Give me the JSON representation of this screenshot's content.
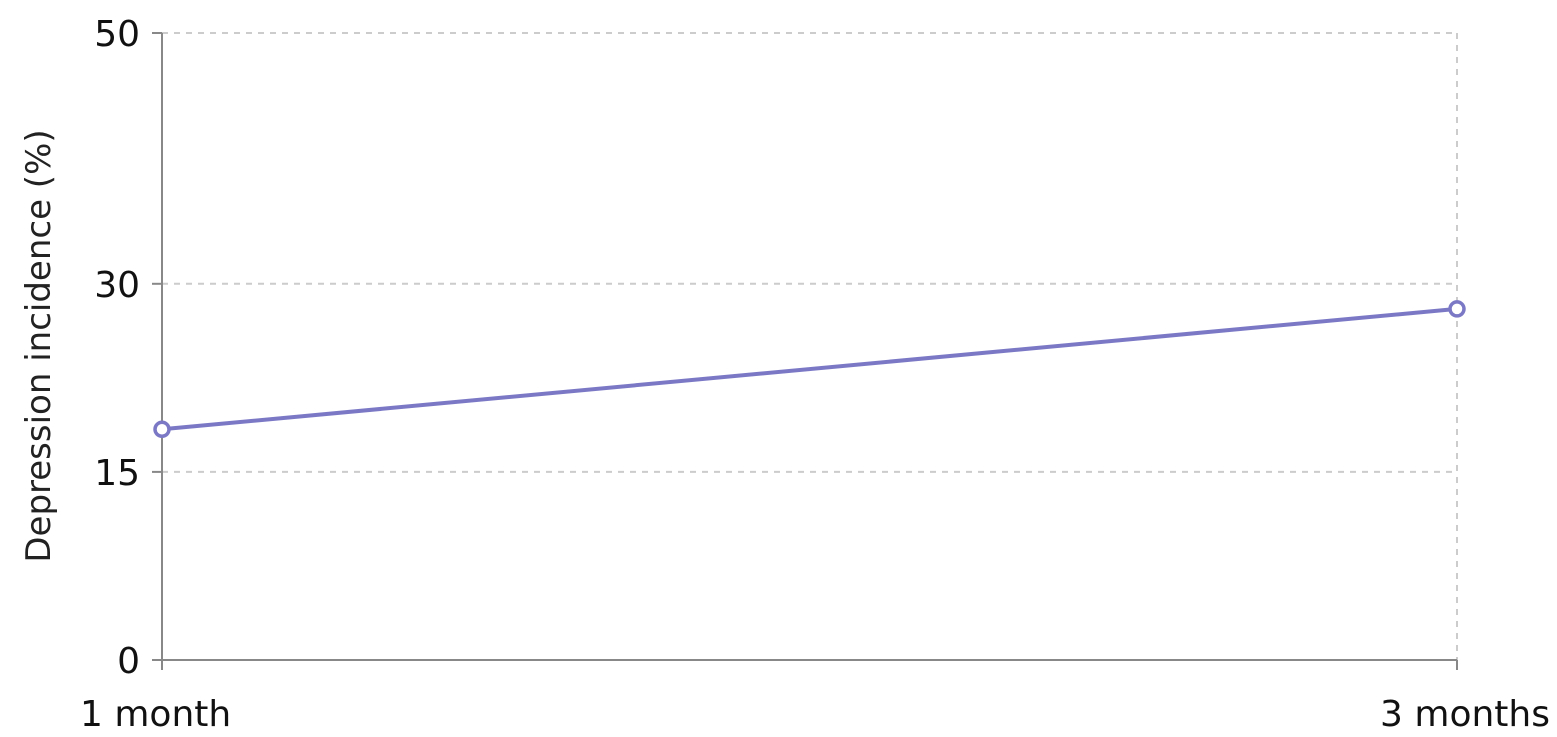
{
  "chart_data": {
    "type": "line",
    "categories": [
      "1 month",
      "3 months"
    ],
    "series": [
      {
        "values": [
          18.4,
          28.0
        ],
        "color": "#7b79c6"
      }
    ],
    "ylabel": "Depression incidence (%)",
    "xlabel": "",
    "ylim": [
      0,
      50
    ],
    "yticks": [
      0,
      15,
      30,
      50
    ],
    "grid": true
  }
}
